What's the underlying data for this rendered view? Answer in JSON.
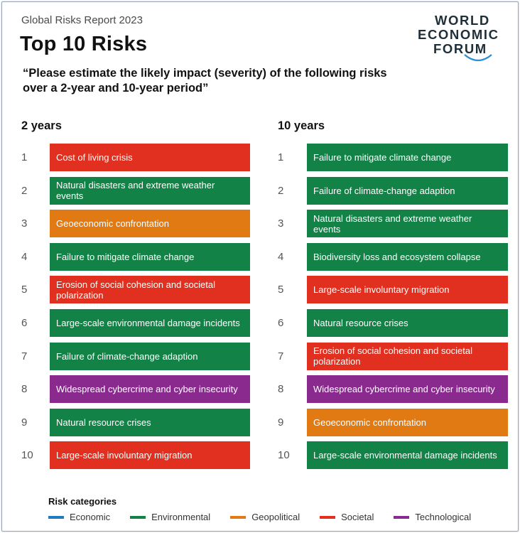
{
  "header": {
    "report": "Global Risks Report 2023",
    "title": "Top 10 Risks",
    "question": "“Please estimate the likely impact (severity) of the following risks over a 2-year and 10-year period”"
  },
  "logo": {
    "line1": "WORLD",
    "line2": "ECONOMIC",
    "line3": "FORUM"
  },
  "colors": {
    "Economic": "#1f7bbf",
    "Environmental": "#128246",
    "Geopolitical": "#e27a14",
    "Societal": "#e1301f",
    "Technological": "#8a2a8f"
  },
  "chart_data": {
    "type": "table",
    "columns": [
      {
        "heading": "2 years",
        "ranks": [
          "1",
          "2",
          "3",
          "4",
          "5",
          "6",
          "7",
          "8",
          "9",
          "10"
        ],
        "risks": [
          {
            "label": "Cost of living crisis",
            "category": "Societal"
          },
          {
            "label": "Natural disasters and extreme weather events",
            "category": "Environmental"
          },
          {
            "label": "Geoeconomic confrontation",
            "category": "Geopolitical"
          },
          {
            "label": "Failure to mitigate climate change",
            "category": "Environmental"
          },
          {
            "label": "Erosion of social cohesion and societal polarization",
            "category": "Societal"
          },
          {
            "label": "Large-scale environmental damage incidents",
            "category": "Environmental"
          },
          {
            "label": "Failure of climate-change adaption",
            "category": "Environmental"
          },
          {
            "label": "Widespread cybercrime and cyber insecurity",
            "category": "Technological"
          },
          {
            "label": "Natural resource crises",
            "category": "Environmental"
          },
          {
            "label": "Large-scale involuntary migration",
            "category": "Societal"
          }
        ]
      },
      {
        "heading": "10 years",
        "ranks": [
          "1",
          "2",
          "3",
          "4",
          "5",
          "6",
          "7",
          "8",
          "9",
          "10"
        ],
        "risks": [
          {
            "label": "Failure to mitigate climate change",
            "category": "Environmental"
          },
          {
            "label": "Failure of climate-change adaption",
            "category": "Environmental"
          },
          {
            "label": "Natural disasters and extreme weather events",
            "category": "Environmental"
          },
          {
            "label": "Biodiversity loss and ecosystem collapse",
            "category": "Environmental"
          },
          {
            "label": "Large-scale involuntary migration",
            "category": "Societal"
          },
          {
            "label": "Natural resource crises",
            "category": "Environmental"
          },
          {
            "label": "Erosion of social cohesion and societal polarization",
            "category": "Societal"
          },
          {
            "label": "Widespread cybercrime and cyber insecurity",
            "category": "Technological"
          },
          {
            "label": "Geoeconomic confrontation",
            "category": "Geopolitical"
          },
          {
            "label": "Large-scale environmental damage incidents",
            "category": "Environmental"
          }
        ]
      }
    ],
    "legend": {
      "title": "Risk categories",
      "items": [
        "Economic",
        "Environmental",
        "Geopolitical",
        "Societal",
        "Technological"
      ]
    }
  }
}
